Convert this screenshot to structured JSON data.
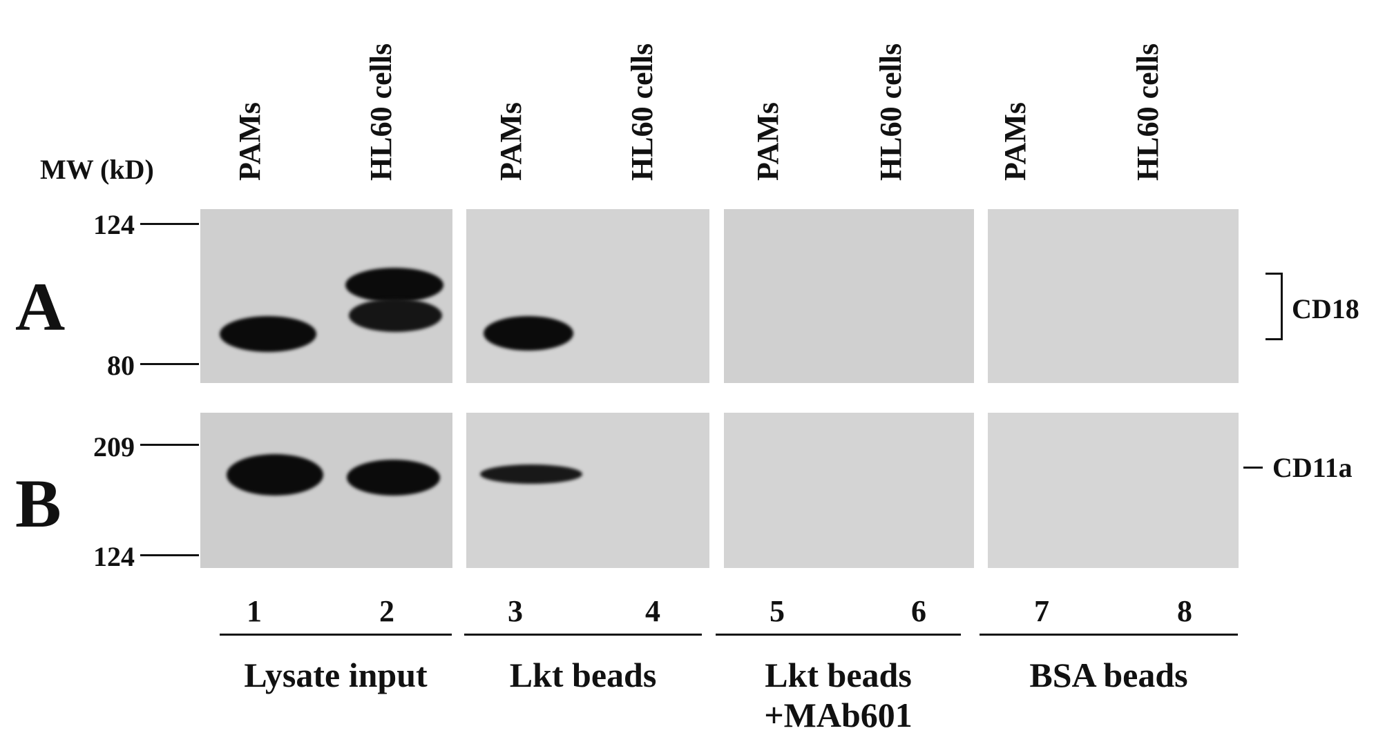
{
  "mw_title": "MW (kD)",
  "lane_headers": [
    "PAMs",
    "HL60 cells",
    "PAMs",
    "HL60 cells",
    "PAMs",
    "HL60 cells",
    "PAMs",
    "HL60 cells"
  ],
  "panel_a": {
    "letter": "A",
    "mw_top": "124",
    "mw_bottom": "80",
    "target": "CD18"
  },
  "panel_b": {
    "letter": "B",
    "mw_top": "209",
    "mw_bottom": "124",
    "target": "CD11a"
  },
  "lane_numbers": [
    "1",
    "2",
    "3",
    "4",
    "5",
    "6",
    "7",
    "8"
  ],
  "groups": [
    "Lysate input",
    "Lkt beads",
    "Lkt beads\n+MAb601",
    "BSA beads"
  ]
}
